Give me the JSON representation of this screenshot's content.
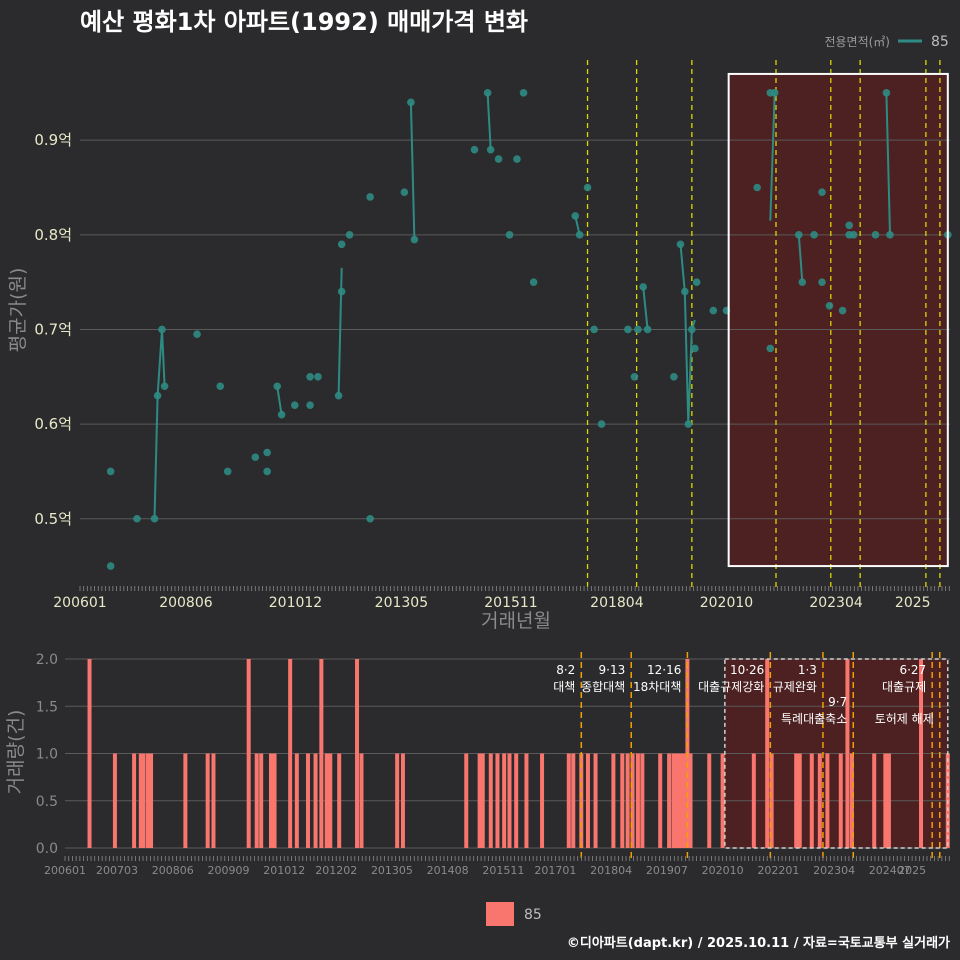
{
  "title": "예산 평화1차 아파트(1992) 매매가격 변화",
  "footer": "©디아파트(dapt.kr) / 2025.10.11 / 자료=국토교통부 실거래가",
  "colors": {
    "background": "#2b2b2d",
    "price_line": "#2e8b83",
    "volume_bar": "#f8766d",
    "yellow_dash": "#d8d800",
    "orange_dash": "#f0a000",
    "highlight_fill": "#5a1e1e"
  },
  "chart_data": [
    {
      "type": "line",
      "title": "예산 평화1차 아파트(1992) 매매가격 변화",
      "xlabel": "거래년월",
      "ylabel": "평균가(원)",
      "legend_title": "전용면적(㎡)",
      "legend_position": "top-right",
      "series_name": "85",
      "x_ticks": [
        "200601",
        "200806",
        "201012",
        "201305",
        "201511",
        "201804",
        "202010",
        "202304",
        "2025"
      ],
      "y_ticks": [
        {
          "value": 0.5,
          "label": "0.5억"
        },
        {
          "value": 0.6,
          "label": "0.6억"
        },
        {
          "value": 0.7,
          "label": "0.7억"
        },
        {
          "value": 0.8,
          "label": "0.8억"
        },
        {
          "value": 0.9,
          "label": "0.9억"
        }
      ],
      "ylim": [
        0.43,
        0.99
      ],
      "xlim": [
        2006.0,
        2025.85
      ],
      "policy_lines": [
        {
          "x": 2017.58,
          "color": "yellow"
        },
        {
          "x": 2018.7,
          "color": "yellow"
        },
        {
          "x": 2019.96,
          "color": "yellow"
        },
        {
          "x": 2021.88,
          "color": "yellow"
        },
        {
          "x": 2023.13,
          "color": "yellow"
        },
        {
          "x": 2023.8,
          "color": "yellow"
        },
        {
          "x": 2025.3,
          "color": "yellow"
        },
        {
          "x": 2025.62,
          "color": "yellow"
        }
      ],
      "highlight": {
        "x_start": 2020.8,
        "x_end": 2025.8,
        "y_start": 0.45,
        "y_end": 0.97
      },
      "points": [
        [
          2006.7,
          0.55
        ],
        [
          2006.7,
          0.45
        ],
        [
          2007.3,
          0.5
        ],
        [
          2007.7,
          0.5
        ],
        [
          2007.77,
          0.63
        ],
        [
          2007.87,
          0.7
        ],
        [
          2007.93,
          0.64
        ],
        [
          2008.67,
          0.695
        ],
        [
          2009.2,
          0.64
        ],
        [
          2009.37,
          0.55
        ],
        [
          2010.0,
          0.565
        ],
        [
          2010.27,
          0.57
        ],
        [
          2010.27,
          0.55
        ],
        [
          2010.5,
          0.64
        ],
        [
          2010.6,
          0.61
        ],
        [
          2010.9,
          0.62
        ],
        [
          2011.25,
          0.62
        ],
        [
          2011.25,
          0.65
        ],
        [
          2011.43,
          0.65
        ],
        [
          2011.9,
          0.63
        ],
        [
          2011.97,
          0.74
        ],
        [
          2011.97,
          0.79
        ],
        [
          2012.15,
          0.8
        ],
        [
          2012.62,
          0.84
        ],
        [
          2012.62,
          0.5
        ],
        [
          2013.4,
          0.845
        ],
        [
          2013.55,
          0.94
        ],
        [
          2013.63,
          0.795
        ],
        [
          2015.0,
          0.89
        ],
        [
          2015.3,
          0.95
        ],
        [
          2015.37,
          0.89
        ],
        [
          2015.55,
          0.88
        ],
        [
          2015.8,
          0.8
        ],
        [
          2015.97,
          0.88
        ],
        [
          2016.12,
          0.95
        ],
        [
          2016.35,
          0.75
        ],
        [
          2017.3,
          0.82
        ],
        [
          2017.4,
          0.8
        ],
        [
          2017.58,
          0.85
        ],
        [
          2017.73,
          0.7
        ],
        [
          2017.9,
          0.6
        ],
        [
          2018.5,
          0.7
        ],
        [
          2018.65,
          0.65
        ],
        [
          2018.73,
          0.7
        ],
        [
          2018.85,
          0.745
        ],
        [
          2018.95,
          0.7
        ],
        [
          2019.55,
          0.65
        ],
        [
          2019.7,
          0.79
        ],
        [
          2019.8,
          0.74
        ],
        [
          2019.88,
          0.6
        ],
        [
          2019.96,
          0.7
        ],
        [
          2020.03,
          0.68
        ],
        [
          2020.07,
          0.75
        ],
        [
          2020.45,
          0.72
        ],
        [
          2020.75,
          0.72
        ],
        [
          2021.45,
          0.85
        ],
        [
          2021.75,
          0.95
        ],
        [
          2021.75,
          0.68
        ],
        [
          2021.85,
          0.95
        ],
        [
          2022.4,
          0.8
        ],
        [
          2022.48,
          0.75
        ],
        [
          2022.75,
          0.8
        ],
        [
          2022.93,
          0.845
        ],
        [
          2022.93,
          0.75
        ],
        [
          2023.1,
          0.725
        ],
        [
          2023.4,
          0.72
        ],
        [
          2023.55,
          0.81
        ],
        [
          2023.55,
          0.8
        ],
        [
          2023.65,
          0.8
        ],
        [
          2024.15,
          0.8
        ],
        [
          2024.4,
          0.95
        ],
        [
          2024.48,
          0.8
        ],
        [
          2025.8,
          0.8
        ]
      ],
      "segments": [
        [
          [
            2007.7,
            0.5
          ],
          [
            2007.77,
            0.63
          ],
          [
            2007.87,
            0.7
          ],
          [
            2007.93,
            0.64
          ]
        ],
        [
          [
            2010.5,
            0.64
          ],
          [
            2010.6,
            0.61
          ]
        ],
        [
          [
            2011.9,
            0.63
          ],
          [
            2011.97,
            0.765
          ]
        ],
        [
          [
            2013.55,
            0.94
          ],
          [
            2013.63,
            0.795
          ]
        ],
        [
          [
            2015.3,
            0.95
          ],
          [
            2015.37,
            0.89
          ]
        ],
        [
          [
            2017.3,
            0.82
          ],
          [
            2017.4,
            0.8
          ]
        ],
        [
          [
            2018.85,
            0.745
          ],
          [
            2018.95,
            0.7
          ]
        ],
        [
          [
            2019.7,
            0.79
          ],
          [
            2019.8,
            0.74
          ],
          [
            2019.88,
            0.6
          ],
          [
            2019.96,
            0.7
          ],
          [
            2020.03,
            0.71
          ]
        ],
        [
          [
            2021.75,
            0.815
          ],
          [
            2021.85,
            0.95
          ]
        ],
        [
          [
            2022.4,
            0.8
          ],
          [
            2022.48,
            0.75
          ]
        ],
        [
          [
            2024.4,
            0.95
          ],
          [
            2024.48,
            0.8
          ]
        ]
      ]
    },
    {
      "type": "bar",
      "ylabel": "거래량(건)",
      "x_ticks": [
        "200601",
        "200703",
        "200806",
        "200909",
        "201012",
        "201202",
        "201305",
        "201408",
        "201511",
        "201701",
        "201804",
        "201907",
        "202010",
        "202201",
        "202304",
        "202407",
        "2025"
      ],
      "y_ticks": [
        "0.0",
        "0.5",
        "1.0",
        "1.5",
        "2.0"
      ],
      "ylim": [
        0,
        2.0
      ],
      "xlim": [
        2006.0,
        2025.85
      ],
      "legend_label": "85",
      "legend_position": "bottom",
      "policies": [
        {
          "x": 2017.58,
          "color": "orange",
          "date": "8·2",
          "label": "대책"
        },
        {
          "x": 2018.7,
          "color": "orange",
          "date": "9·13",
          "label": "종합대책"
        },
        {
          "x": 2019.96,
          "color": "orange",
          "date": "12·16",
          "label": "18차대책"
        },
        {
          "x": 2021.82,
          "color": "orange",
          "date": "10·26",
          "label": "대출규제강화"
        },
        {
          "x": 2023.0,
          "color": "orange",
          "date": "1·3",
          "label": "규제완화"
        },
        {
          "x": 2023.68,
          "color": "orange",
          "date": "9·7",
          "label": "특례대출축소"
        },
        {
          "x": 2025.45,
          "color": "orange",
          "date": "6·27",
          "label": "대출규제"
        },
        {
          "x": 2025.62,
          "color": "orange",
          "date": "",
          "label": "토허제 해제"
        }
      ],
      "highlight": {
        "x_start": 2020.8,
        "x_end": 2025.8
      },
      "bars": [
        [
          2006.55,
          2
        ],
        [
          2007.12,
          1
        ],
        [
          2007.55,
          1
        ],
        [
          2007.7,
          1
        ],
        [
          2007.75,
          1
        ],
        [
          2007.85,
          1
        ],
        [
          2007.93,
          1
        ],
        [
          2008.7,
          1
        ],
        [
          2009.2,
          1
        ],
        [
          2009.33,
          1
        ],
        [
          2010.12,
          2
        ],
        [
          2010.3,
          1
        ],
        [
          2010.4,
          1
        ],
        [
          2010.62,
          1
        ],
        [
          2010.7,
          1
        ],
        [
          2011.05,
          2
        ],
        [
          2011.2,
          1
        ],
        [
          2011.45,
          1
        ],
        [
          2011.62,
          1
        ],
        [
          2011.75,
          2
        ],
        [
          2011.87,
          1
        ],
        [
          2011.95,
          1
        ],
        [
          2012.15,
          1
        ],
        [
          2012.55,
          2
        ],
        [
          2012.65,
          1
        ],
        [
          2013.45,
          1
        ],
        [
          2013.58,
          1
        ],
        [
          2015.0,
          1
        ],
        [
          2015.3,
          1
        ],
        [
          2015.37,
          1
        ],
        [
          2015.55,
          1
        ],
        [
          2015.7,
          1
        ],
        [
          2015.85,
          1
        ],
        [
          2015.97,
          1
        ],
        [
          2016.12,
          1
        ],
        [
          2016.35,
          1
        ],
        [
          2016.7,
          1
        ],
        [
          2017.3,
          1
        ],
        [
          2017.4,
          1
        ],
        [
          2017.58,
          1
        ],
        [
          2017.73,
          1
        ],
        [
          2017.9,
          1
        ],
        [
          2018.3,
          1
        ],
        [
          2018.5,
          1
        ],
        [
          2018.62,
          1
        ],
        [
          2018.73,
          1
        ],
        [
          2018.85,
          1
        ],
        [
          2018.95,
          1
        ],
        [
          2019.35,
          1
        ],
        [
          2019.55,
          1
        ],
        [
          2019.65,
          1
        ],
        [
          2019.72,
          1
        ],
        [
          2019.8,
          1
        ],
        [
          2019.88,
          1
        ],
        [
          2019.96,
          2
        ],
        [
          2020.03,
          1
        ],
        [
          2020.45,
          1
        ],
        [
          2020.75,
          1
        ],
        [
          2021.45,
          1
        ],
        [
          2021.75,
          2
        ],
        [
          2021.85,
          1
        ],
        [
          2022.4,
          1
        ],
        [
          2022.48,
          1
        ],
        [
          2022.75,
          1
        ],
        [
          2022.93,
          1
        ],
        [
          2023.1,
          1
        ],
        [
          2023.4,
          1
        ],
        [
          2023.55,
          2
        ],
        [
          2023.65,
          1
        ],
        [
          2024.15,
          1
        ],
        [
          2024.4,
          1
        ],
        [
          2024.48,
          1
        ],
        [
          2025.2,
          2
        ],
        [
          2025.8,
          1
        ]
      ]
    }
  ]
}
